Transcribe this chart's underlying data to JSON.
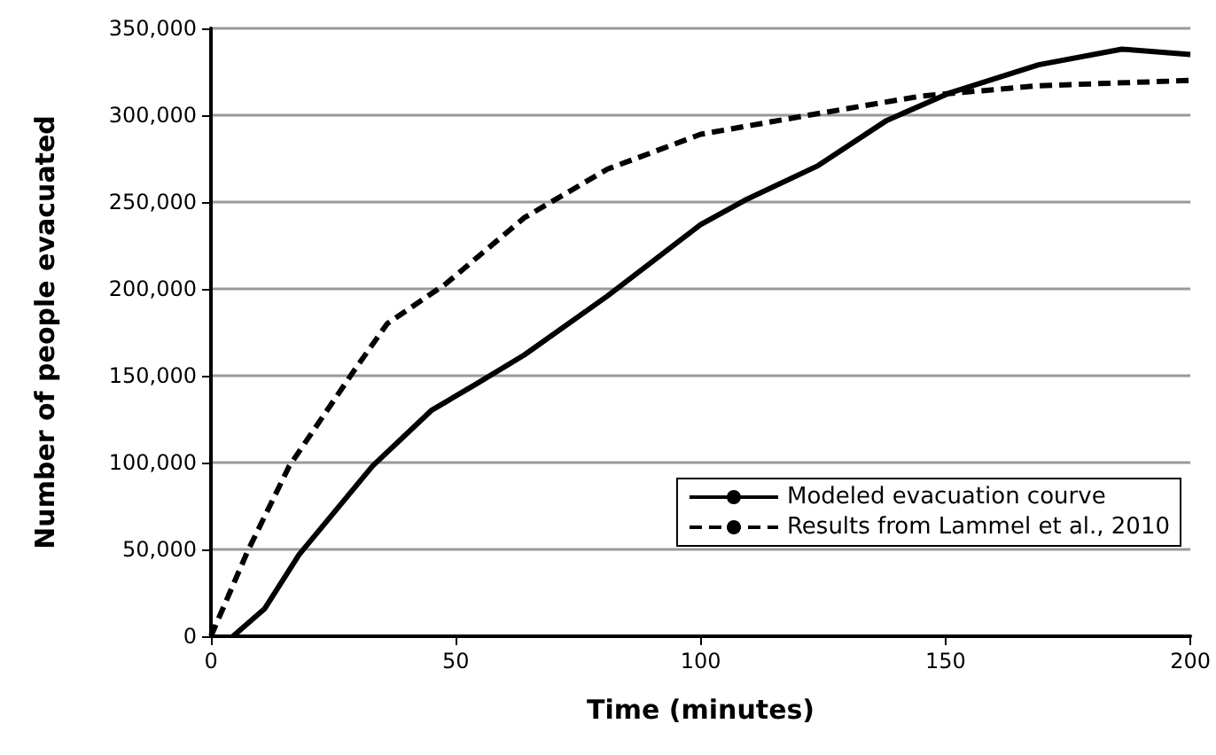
{
  "chart_data": {
    "type": "line",
    "xlabel": "Time (minutes)",
    "ylabel": "Number of people evacuated",
    "xlim": [
      0,
      200
    ],
    "xticks": [
      0,
      50,
      100,
      150,
      200
    ],
    "ylim": [
      0,
      350000
    ],
    "yticks": [
      0,
      {
        "value": 50000,
        "label": "50,000"
      },
      {
        "value": 100000,
        "label": "100,000"
      },
      {
        "value": 150000,
        "label": "150,000"
      },
      {
        "value": 200000,
        "label": "200,000"
      },
      {
        "value": 250000,
        "label": "250,000"
      },
      {
        "value": 300000,
        "label": "300,000"
      },
      {
        "value": 350000,
        "label": "350,000"
      }
    ],
    "grid": "y",
    "legend": "bottom right",
    "marker": "none",
    "series": [
      {
        "name": "Modeled evacuation courve",
        "color": "#000000",
        "line_style": "solid",
        "x": [
          4.5,
          11,
          18,
          33,
          45,
          54,
          64,
          81,
          100,
          109,
          124,
          138,
          151,
          169,
          186,
          200
        ],
        "values": [
          0,
          16000,
          47000,
          98000,
          130000,
          145000,
          162000,
          196000,
          237000,
          251000,
          271000,
          297000,
          313000,
          329000,
          338000,
          335000
        ]
      },
      {
        "name": "Results from Lammel et al., 2010",
        "color": "#000000",
        "line_style": "dashed",
        "x": [
          0,
          7.5,
          16,
          29,
          36,
          48,
          64,
          81,
          100,
          122,
          145,
          169,
          200
        ],
        "values": [
          0,
          49000,
          98000,
          152000,
          180000,
          203000,
          241000,
          269000,
          289000,
          300000,
          311000,
          317000,
          320000
        ]
      }
    ]
  }
}
